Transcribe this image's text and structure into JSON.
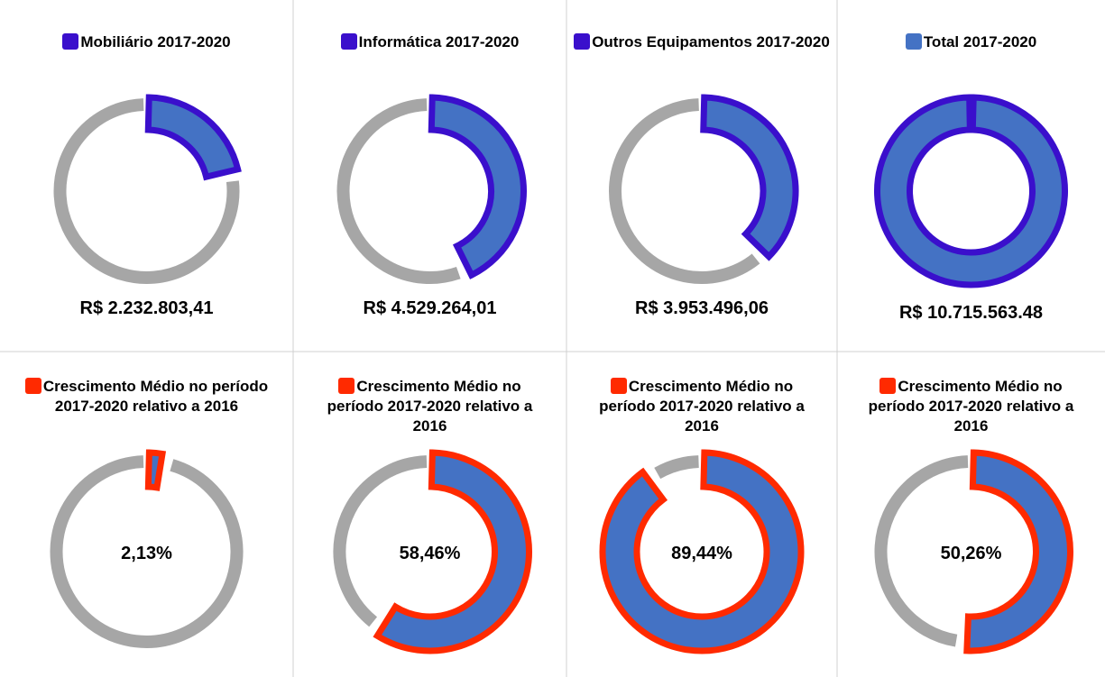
{
  "chart_data": [
    {
      "type": "donut",
      "title": "Mobiliário  2017-2020",
      "values": [
        2232803.41
      ],
      "value_labels": [
        "R$ 2.232.803,41"
      ],
      "ylim": [
        0,
        10715563.48
      ],
      "color": "#4472c4",
      "edge_color": "#3a0fcc"
    },
    {
      "type": "donut",
      "title": "Informática 2017-2020",
      "values": [
        4529264.01
      ],
      "value_labels": [
        "R$ 4.529.264,01"
      ],
      "ylim": [
        0,
        10715563.48
      ],
      "color": "#4472c4",
      "edge_color": "#3a0fcc"
    },
    {
      "type": "donut",
      "title": "Outros Equipamentos 2017-2020",
      "values": [
        3953496.06
      ],
      "value_labels": [
        "R$ 3.953.496,06"
      ],
      "ylim": [
        0,
        10715563.48
      ],
      "color": "#4472c4",
      "edge_color": "#3a0fcc"
    },
    {
      "type": "donut",
      "title": "Total 2017-2020",
      "values": [
        10715563.48
      ],
      "value_labels": [
        "R$ 10.715.563.48"
      ],
      "ylim": [
        0,
        10715563.48
      ],
      "color": "#4472c4",
      "edge_color": "#3a0fcc"
    },
    {
      "type": "donut",
      "title": "Crescimento Médio no período 2017-2020 relativo a 2016",
      "values": [
        2.13
      ],
      "value_labels": [
        "2,13%"
      ],
      "ylim": [
        0,
        100
      ],
      "color": "#4472c4",
      "edge_color": "#ff2a00"
    },
    {
      "type": "donut",
      "title": "Crescimento Médio no período 2017-2020 relativo a 2016",
      "values": [
        58.46
      ],
      "value_labels": [
        "58,46%"
      ],
      "ylim": [
        0,
        100
      ],
      "color": "#4472c4",
      "edge_color": "#ff2a00"
    },
    {
      "type": "donut",
      "title": "Crescimento Médio no período 2017-2020 relativo a 2016",
      "values": [
        89.44
      ],
      "value_labels": [
        "89,44%"
      ],
      "ylim": [
        0,
        100
      ],
      "color": "#4472c4",
      "edge_color": "#ff2a00"
    },
    {
      "type": "donut",
      "title": "Crescimento Médio no período 2017-2020 relativo a 2016",
      "values": [
        50.26
      ],
      "value_labels": [
        "50,26%"
      ],
      "ylim": [
        0,
        100
      ],
      "color": "#4472c4",
      "edge_color": "#ff2a00"
    }
  ]
}
